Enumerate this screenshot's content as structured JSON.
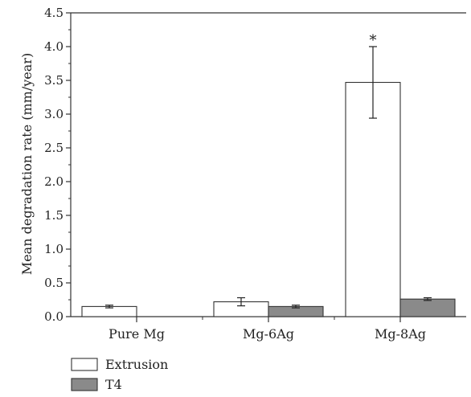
{
  "chart_data": {
    "type": "bar",
    "categories": [
      "Pure Mg",
      "Mg-6Ag",
      "Mg-8Ag"
    ],
    "series": [
      {
        "name": "Extrusion",
        "color": "#ffffff",
        "values": [
          0.15,
          0.22,
          3.47
        ],
        "errors": [
          0.02,
          0.06,
          0.53
        ]
      },
      {
        "name": "T4",
        "color": "#8a8a8a",
        "values": [
          null,
          0.15,
          0.26
        ],
        "errors": [
          null,
          0.02,
          0.02
        ]
      }
    ],
    "title": "",
    "xlabel": "",
    "ylabel": "Mean degradation rate (mm/year)",
    "ylim": [
      0,
      4.5
    ],
    "yticks": [
      "0.0",
      "0.5",
      "1.0",
      "1.5",
      "2.0",
      "2.5",
      "3.0",
      "3.5",
      "4.0",
      "4.5"
    ],
    "grid": false,
    "legend_position": "bottom-left",
    "annotations": [
      {
        "text": "*",
        "category": "Mg-8Ag",
        "series": "Extrusion"
      }
    ]
  }
}
